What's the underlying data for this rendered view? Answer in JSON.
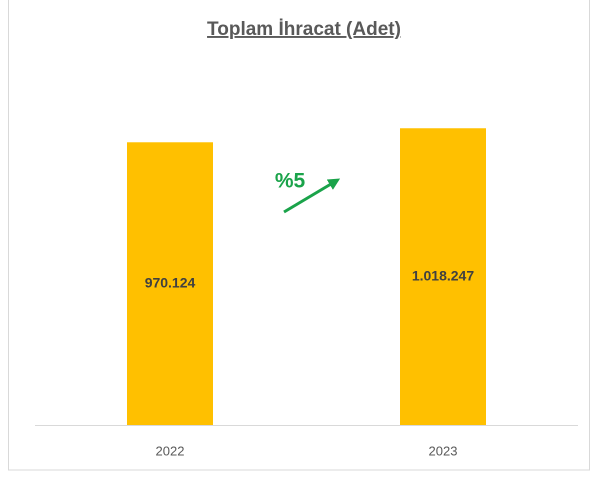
{
  "chart_data": {
    "type": "bar",
    "title": "Toplam İhracat (Adet)",
    "categories": [
      "2022",
      "2023"
    ],
    "values": [
      970124,
      1018247
    ],
    "value_labels": [
      "970.124",
      "1.018.247"
    ],
    "color": "#ffc000",
    "ylim": [
      0,
      1400000
    ],
    "annotation": "%5",
    "annotation_color": "#1aa34a"
  }
}
